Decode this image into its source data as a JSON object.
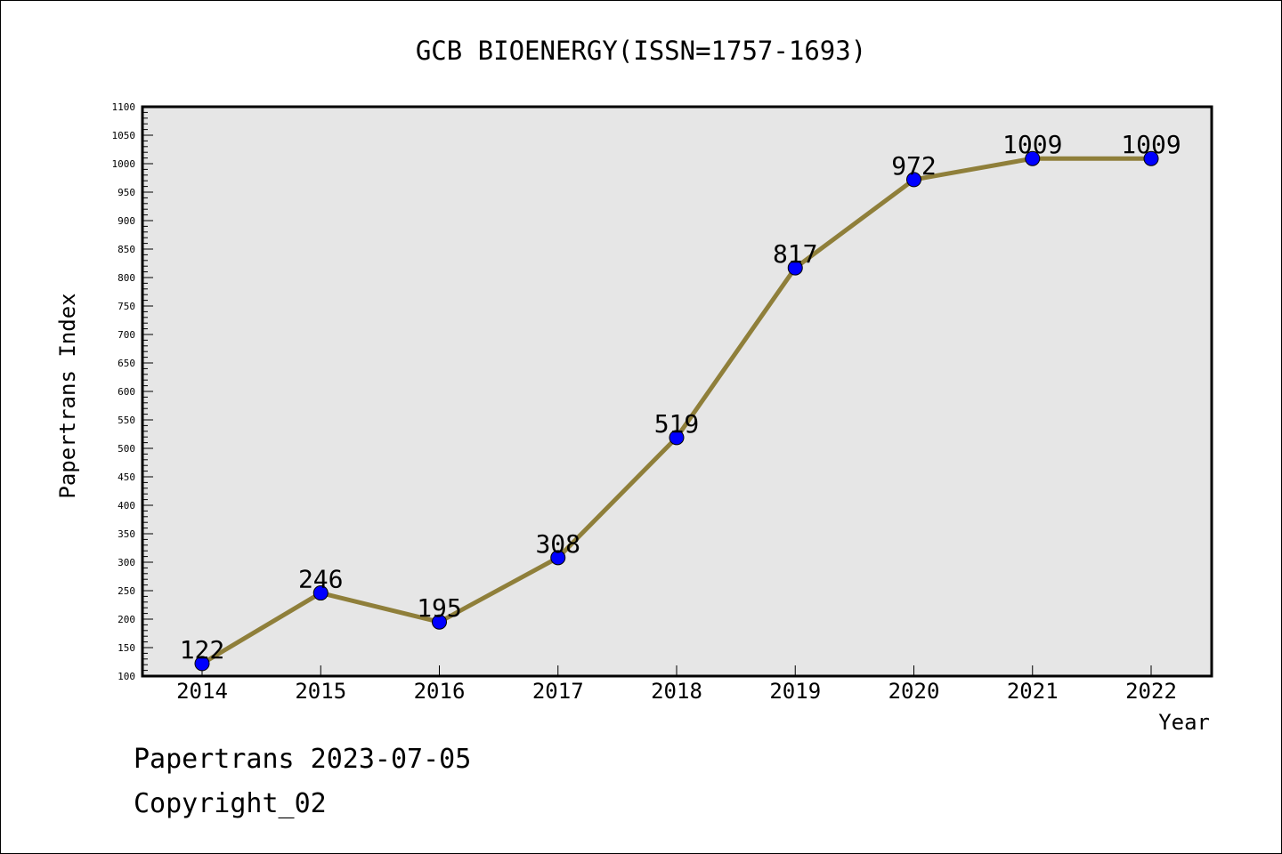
{
  "chart_data": {
    "type": "line",
    "title": "GCB BIOENERGY(ISSN=1757-1693)",
    "xlabel": "Year",
    "ylabel": "Papertrans Index",
    "categories": [
      "2014",
      "2015",
      "2016",
      "2017",
      "2018",
      "2019",
      "2020",
      "2021",
      "2022"
    ],
    "series": [
      {
        "values": [
          122,
          246,
          195,
          308,
          519,
          817,
          972,
          1009,
          1009
        ]
      }
    ],
    "data_labels": [
      "122",
      "246",
      "195",
      "308",
      "519",
      "817",
      "972",
      "1009",
      "1009"
    ],
    "ylim": [
      100,
      1100
    ],
    "yticks": [
      "100",
      "150",
      "200",
      "250",
      "300",
      "350",
      "400",
      "450",
      "500",
      "550",
      "600",
      "650",
      "700",
      "750",
      "800",
      "850",
      "900",
      "950",
      "1000",
      "1050",
      "1100"
    ],
    "grid": false,
    "line_color": "#8f7f3a",
    "marker_color": "#0000ff",
    "plot_background": "#e6e6e6"
  },
  "footer": {
    "line1": "Papertrans 2023-07-05",
    "line2": "Copyright_02"
  }
}
